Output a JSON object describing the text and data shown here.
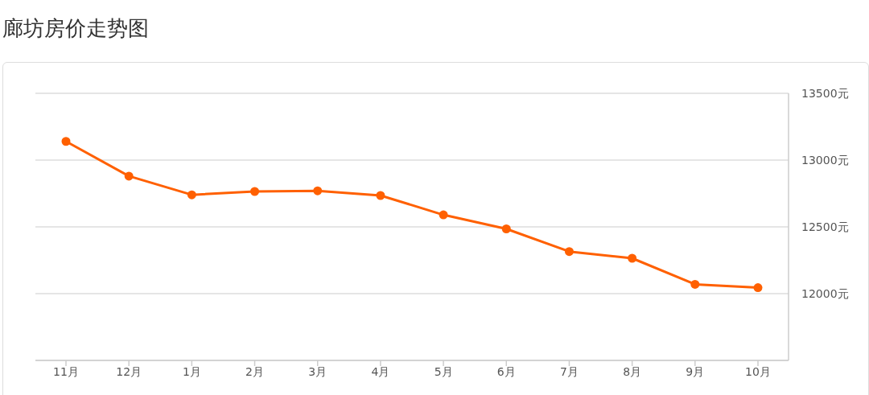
{
  "chart_data": {
    "type": "line",
    "title": "廊坊房价走势图",
    "categories": [
      "11月",
      "12月",
      "1月",
      "2月",
      "3月",
      "4月",
      "5月",
      "6月",
      "7月",
      "8月",
      "9月",
      "10月"
    ],
    "series": [
      {
        "color": "#ff6000",
        "values": [
          13140,
          12880,
          12740,
          12765,
          12770,
          12735,
          12590,
          12485,
          12315,
          12265,
          12070,
          12045
        ]
      }
    ],
    "ylim": [
      11500,
      13500
    ],
    "yticks": [
      {
        "value": 12000,
        "label": "12000元"
      },
      {
        "value": 12500,
        "label": "12500元"
      },
      {
        "value": 13000,
        "label": "13000元"
      },
      {
        "value": 13500,
        "label": "13500元"
      }
    ],
    "grid": "y",
    "marker": "circle",
    "line_style": "solid",
    "legend": false
  }
}
